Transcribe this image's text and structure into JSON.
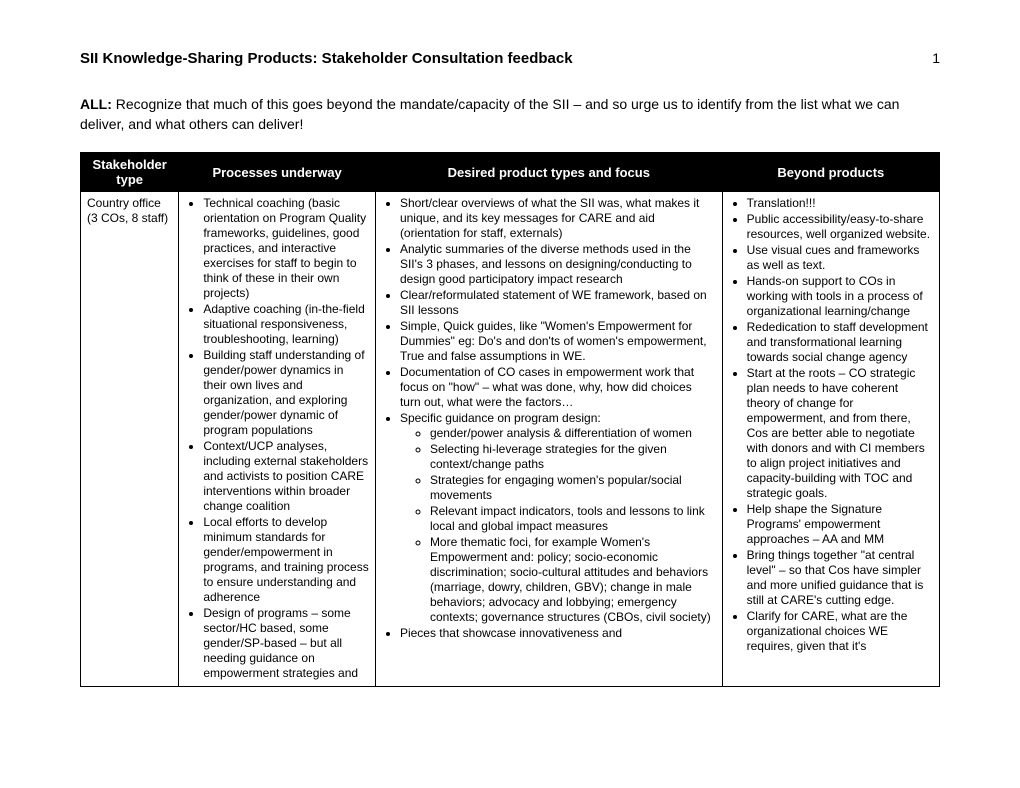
{
  "header": {
    "title": "SII Knowledge-Sharing Products: Stakeholder Consultation feedback",
    "page_number": "1"
  },
  "intro": {
    "bold_prefix": "ALL:",
    "text": " Recognize that much of this goes beyond the mandate/capacity of the SII – and so urge us to identify from the list what we can deliver, and what others can deliver!"
  },
  "table": {
    "headers": {
      "stakeholder": "Stakeholder type",
      "processes": "Processes underway",
      "desired": "Desired product types and focus",
      "beyond": "Beyond products"
    },
    "row": {
      "stakeholder": {
        "main": "Country office",
        "sub": "(3 COs, 8 staff)"
      },
      "processes": [
        "Technical coaching (basic orientation on Program Quality frameworks, guidelines, good practices, and interactive exercises for staff to begin to think of these in their own projects)",
        "Adaptive coaching (in-the-field situational responsiveness, troubleshooting, learning)",
        "Building staff understanding of gender/power dynamics in their own lives and organization, and exploring gender/power dynamic of program populations",
        "Context/UCP analyses, including external stakeholders and activists to position CARE interventions within broader change coalition",
        "Local efforts to develop minimum standards for gender/empowerment in programs, and training process to ensure understanding and adherence",
        "Design of programs – some sector/HC based, some gender/SP-based – but all needing guidance on empowerment strategies and"
      ],
      "desired": {
        "main": [
          "Short/clear overviews of what the SII was, what makes it unique, and its key messages for CARE and aid (orientation for staff, externals)",
          "Analytic summaries of the diverse methods used in the SII's 3 phases, and lessons on designing/conducting to design good participatory impact research",
          "Clear/reformulated statement of WE framework, based on SII lessons",
          "Simple, Quick guides, like \"Women's Empowerment for Dummies\" eg: Do's and don'ts of women's empowerment, True and false assumptions in WE.",
          "Documentation of CO cases in empowerment work that focus on \"how\" – what was done, why, how did choices turn out, what were the factors…",
          "Specific guidance on program design:"
        ],
        "sub": [
          "gender/power analysis & differentiation of women",
          "Selecting hi-leverage strategies for the given context/change paths",
          "Strategies for engaging women's popular/social movements",
          "Relevant impact indicators, tools and lessons to link local and global impact measures",
          "More thematic foci, for example Women's Empowerment and: policy; socio-economic discrimination; socio-cultural attitudes and behaviors (marriage, dowry, children, GBV); change in male behaviors; advocacy and lobbying; emergency contexts; governance structures (CBOs, civil society)"
        ],
        "tail": [
          "Pieces that showcase innovativeness and"
        ]
      },
      "beyond": [
        "Translation!!!",
        "Public accessibility/easy-to-share resources, well organized website.",
        "Use visual cues and frameworks as well as text.",
        "Hands-on support to COs in working with tools in a process of organizational learning/change",
        "Rededication to staff development and transformational learning towards social change agency",
        "Start at the roots – CO strategic plan needs to have coherent theory of change for empowerment, and from there, Cos are better able to negotiate with donors and with CI members to align project initiatives and capacity-building with TOC and strategic goals.",
        "Help shape the Signature Programs' empowerment approaches – AA and MM",
        "Bring things together \"at central level\" – so that Cos have simpler and more unified guidance that is still at CARE's cutting edge.",
        "Clarify for CARE, what are the organizational choices WE requires, given that it's"
      ]
    }
  }
}
